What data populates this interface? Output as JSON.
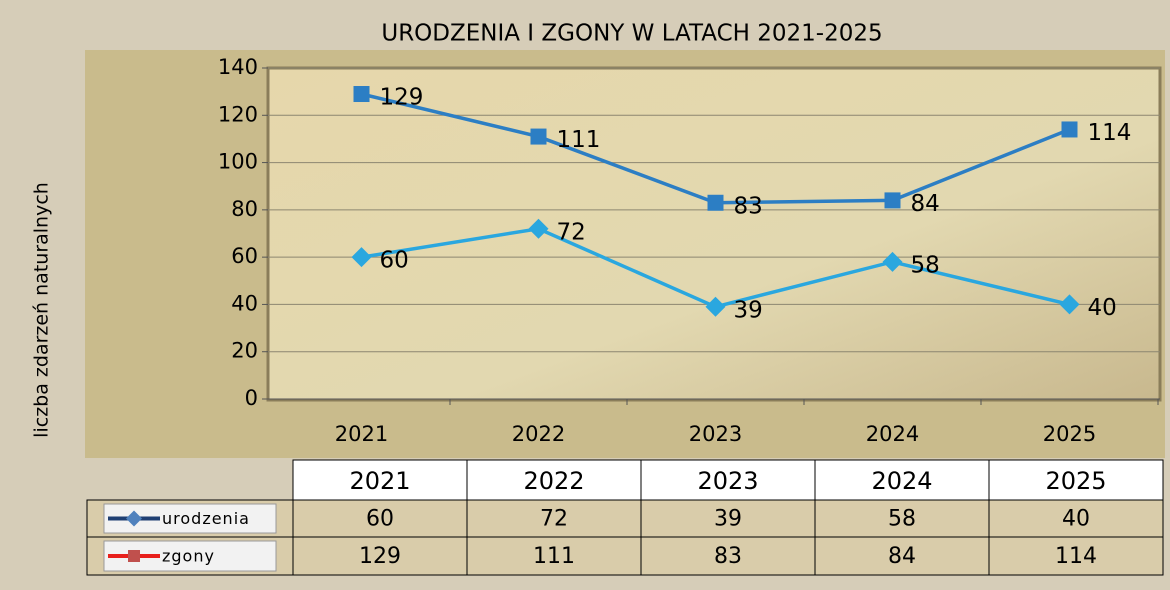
{
  "chart_data": {
    "type": "line",
    "title": "URODZENIA I ZGONY W LATACH 2021-2025",
    "y_label": "liczba zdarzeń naturalnych",
    "categories": [
      "2021",
      "2022",
      "2023",
      "2024",
      "2025"
    ],
    "series": [
      {
        "name": "urodzenia",
        "color": "#2aa7df",
        "marker": "diamond",
        "key_color": "#1f3f73",
        "key_marker_color": "#4f81bd",
        "values": [
          60,
          72,
          39,
          58,
          40
        ]
      },
      {
        "name": "zgony",
        "color": "#2c7ec4",
        "marker": "square",
        "key_color": "#e8201c",
        "key_marker_color": "#c0504d",
        "values": [
          129,
          111,
          83,
          84,
          114
        ]
      }
    ],
    "ylim": [
      0,
      140
    ],
    "yticks": [
      0,
      20,
      40,
      60,
      80,
      100,
      120,
      140
    ],
    "grid": true
  }
}
